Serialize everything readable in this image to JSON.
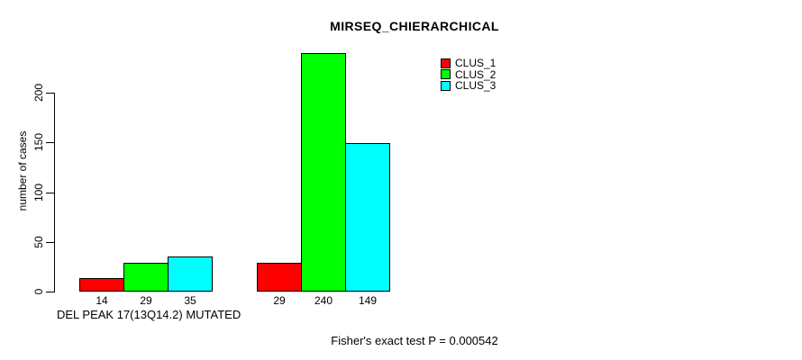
{
  "chart_data": {
    "type": "bar",
    "title": "MIRSEQ_CHIERARCHICAL",
    "ylabel": "number of cases",
    "xlabel": "",
    "annotation": "Fisher's exact test P = 0.000542",
    "categories": [
      "DEL PEAK 17(13Q14.2) MUTATED",
      ""
    ],
    "series": [
      {
        "name": "CLUS_1",
        "color": "#ff0000",
        "values": [
          14,
          29
        ]
      },
      {
        "name": "CLUS_2",
        "color": "#00ff00",
        "values": [
          29,
          240
        ]
      },
      {
        "name": "CLUS_3",
        "color": "#00ffff",
        "values": [
          35,
          149
        ]
      }
    ],
    "bar_value_labels": [
      [
        14,
        29,
        35
      ],
      [
        29,
        240,
        149
      ]
    ],
    "yticks": [
      0,
      50,
      100,
      150,
      200
    ],
    "ylim": [
      0,
      240
    ],
    "grid": false,
    "bar_border_color": "#000000",
    "legend": {
      "position": "inside-top-right",
      "entries": [
        "CLUS_1",
        "CLUS_2",
        "CLUS_3"
      ]
    }
  }
}
